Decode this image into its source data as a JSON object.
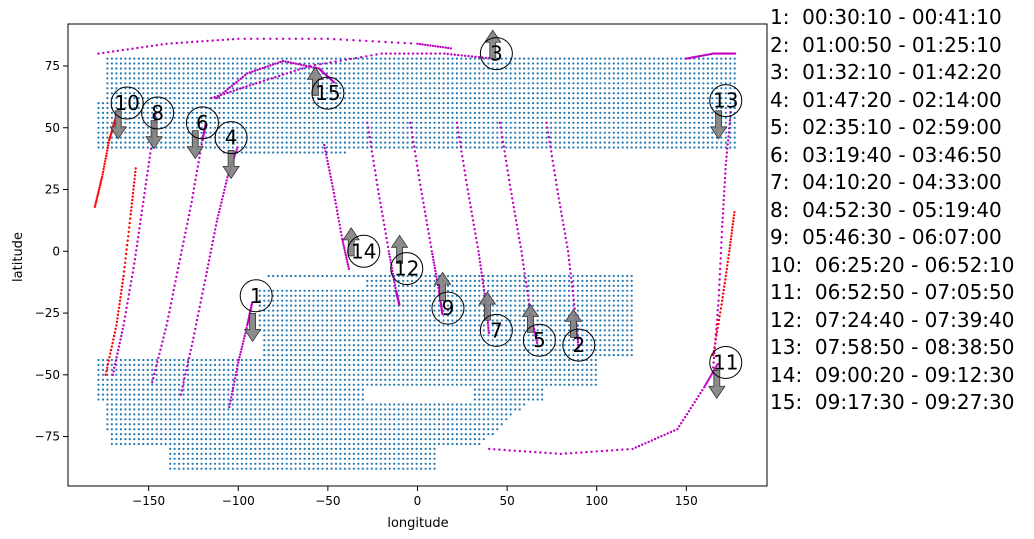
{
  "chart_data": {
    "type": "scatter",
    "xlabel": "longitude",
    "ylabel": "latitude",
    "xlim": [
      -195,
      195
    ],
    "ylim": [
      -95,
      92
    ],
    "xticks": [
      -150,
      -100,
      -50,
      0,
      50,
      100,
      150
    ],
    "yticks": [
      -75,
      -50,
      -25,
      0,
      25,
      50,
      75
    ],
    "grid": false,
    "colors": {
      "coverage": "#1f77b4",
      "track": "#c000c0",
      "track_highlight": "#ff0000",
      "arrow": "#808080"
    },
    "coverage_region": "dotted grid of points in blue",
    "passes": [
      {
        "id": "1",
        "time": "00:30:10 - 00:41:10",
        "color": "#c000c0",
        "path": [
          [
            -105,
            -63
          ],
          [
            -100,
            -45
          ],
          [
            -95,
            -30
          ],
          [
            -92,
            -20
          ]
        ],
        "label_xy": [
          -90,
          -18
        ],
        "arrow": "down",
        "arrow_xy": [
          -92,
          -30
        ]
      },
      {
        "id": "2",
        "time": "01:00:50 - 01:25:10",
        "color": "#c000c0",
        "path": [
          [
            72,
            52
          ],
          [
            78,
            25
          ],
          [
            84,
            0
          ],
          [
            88,
            -25
          ],
          [
            90,
            -40
          ]
        ],
        "label_xy": [
          90,
          -38
        ],
        "arrow": "up",
        "arrow_xy": [
          87,
          -30
        ]
      },
      {
        "id": "3",
        "time": "01:32:10 - 01:42:20",
        "color": "#c000c0",
        "path": [
          [
            -115,
            62
          ],
          [
            -90,
            68
          ],
          [
            -60,
            75
          ],
          [
            -20,
            80
          ],
          [
            15,
            80
          ],
          [
            42,
            78
          ]
        ],
        "label_xy": [
          44,
          80
        ],
        "arrow": "up",
        "arrow_xy": [
          42,
          83
        ]
      },
      {
        "id": "4",
        "time": "01:47:20 - 02:14:00",
        "color": "#c000c0",
        "path": [
          [
            -132,
            -58
          ],
          [
            -125,
            -35
          ],
          [
            -118,
            -10
          ],
          [
            -112,
            12
          ],
          [
            -106,
            30
          ],
          [
            -100,
            43
          ]
        ],
        "label_xy": [
          -104,
          46
        ],
        "arrow": "down",
        "arrow_xy": [
          -104,
          36
        ]
      },
      {
        "id": "5",
        "time": "02:35:10 - 02:59:00",
        "color": "#c000c0",
        "path": [
          [
            46,
            52
          ],
          [
            52,
            25
          ],
          [
            58,
            0
          ],
          [
            63,
            -25
          ],
          [
            67,
            -38
          ]
        ],
        "label_xy": [
          68,
          -36
        ],
        "arrow": "up",
        "arrow_xy": [
          63,
          -28
        ]
      },
      {
        "id": "6",
        "time": "03:19:40 - 03:46:50",
        "color": "#c000c0",
        "path": [
          [
            -148,
            -53
          ],
          [
            -140,
            -30
          ],
          [
            -133,
            -5
          ],
          [
            -126,
            20
          ],
          [
            -120,
            45
          ],
          [
            -118,
            52
          ]
        ],
        "label_xy": [
          -120,
          52
        ],
        "arrow": "down",
        "arrow_xy": [
          -124,
          44
        ]
      },
      {
        "id": "7",
        "time": "04:10:20 - 04:33:00",
        "color": "#c000c0",
        "path": [
          [
            22,
            52
          ],
          [
            28,
            25
          ],
          [
            34,
            0
          ],
          [
            38,
            -20
          ],
          [
            40,
            -34
          ]
        ],
        "label_xy": [
          44,
          -32
        ],
        "arrow": "up",
        "arrow_xy": [
          39,
          -23
        ]
      },
      {
        "id": "8",
        "time": "04:52:30 - 05:19:40",
        "color": "#c000c0",
        "path": [
          [
            -170,
            -50
          ],
          [
            -164,
            -30
          ],
          [
            -158,
            -5
          ],
          [
            -153,
            20
          ],
          [
            -148,
            45
          ],
          [
            -146,
            57
          ]
        ],
        "label_xy": [
          -145,
          56
        ],
        "arrow": "down",
        "arrow_xy": [
          -147,
          48
        ]
      },
      {
        "id": "9",
        "time": "05:46:30 - 06:07:00",
        "color": "#c000c0",
        "path": [
          [
            -4,
            52
          ],
          [
            2,
            25
          ],
          [
            8,
            0
          ],
          [
            12,
            -16
          ],
          [
            14,
            -26
          ]
        ],
        "label_xy": [
          17,
          -23
        ],
        "arrow": "up",
        "arrow_xy": [
          14,
          -15
        ]
      },
      {
        "id": "10",
        "time": "06:25:20 - 06:52:10",
        "color": "#ff0000",
        "path": [
          [
            -180,
            18
          ],
          [
            -176,
            30
          ],
          [
            -172,
            45
          ],
          [
            -168,
            55
          ]
        ],
        "label_xy": [
          -162,
          60
        ],
        "arrow": "down",
        "arrow_xy": [
          -167,
          52
        ]
      },
      {
        "id": "11",
        "time": "06:52:50 - 07:05:50",
        "color": "#c000c0",
        "path": [
          [
            40,
            -80
          ],
          [
            80,
            -82
          ],
          [
            120,
            -80
          ],
          [
            145,
            -72
          ],
          [
            160,
            -55
          ],
          [
            168,
            -45
          ]
        ],
        "label_xy": [
          172,
          -45
        ],
        "arrow": "down",
        "arrow_xy": [
          167,
          -53
        ]
      },
      {
        "id": "12",
        "time": "07:24:40 - 07:39:40",
        "color": "#c000c0",
        "path": [
          [
            -28,
            52
          ],
          [
            -22,
            25
          ],
          [
            -16,
            0
          ],
          [
            -12,
            -16
          ],
          [
            -10,
            -22
          ]
        ],
        "label_xy": [
          -6,
          -7
        ],
        "arrow": "up",
        "arrow_xy": [
          -10,
          0
        ]
      },
      {
        "id": "13",
        "time": "07:58:50 - 08:38:50",
        "color": "#c000c0",
        "path": [
          [
            165,
            -47
          ],
          [
            168,
            -20
          ],
          [
            170,
            10
          ],
          [
            172,
            35
          ],
          [
            175,
            58
          ]
        ],
        "label_xy": [
          172,
          61
        ],
        "arrow": "down",
        "arrow_xy": [
          168,
          52
        ]
      },
      {
        "id": "14",
        "time": "09:00:20 - 09:12:30",
        "color": "#c000c0",
        "path": [
          [
            -52,
            43
          ],
          [
            -47,
            25
          ],
          [
            -42,
            5
          ],
          [
            -38,
            -8
          ]
        ],
        "label_xy": [
          -30,
          0
        ],
        "arrow": "up",
        "arrow_xy": [
          -37,
          3
        ]
      },
      {
        "id": "15",
        "time": "09:17:30 - 09:27:30",
        "color": "#c000c0",
        "path": [
          [
            -112,
            62
          ],
          [
            -95,
            72
          ],
          [
            -75,
            77
          ],
          [
            -55,
            74
          ],
          [
            -46,
            68
          ]
        ],
        "label_xy": [
          -50,
          64
        ],
        "arrow": "up",
        "arrow_xy": [
          -57,
          68
        ]
      }
    ],
    "extra_segments": [
      {
        "color": "#ff0000",
        "path": [
          [
            -174,
            -50
          ],
          [
            -168,
            -30
          ],
          [
            -164,
            -10
          ],
          [
            -160,
            15
          ],
          [
            -157,
            35
          ]
        ]
      },
      {
        "color": "#c000c0",
        "path": [
          [
            -178,
            80
          ],
          [
            -140,
            84
          ],
          [
            -100,
            86
          ],
          [
            -50,
            86
          ],
          [
            0,
            84
          ],
          [
            20,
            82
          ]
        ]
      },
      {
        "color": "#ff0000",
        "path": [
          [
            165,
            -42
          ],
          [
            170,
            -20
          ],
          [
            174,
            0
          ],
          [
            177,
            17
          ]
        ]
      },
      {
        "color": "#c000c0",
        "path": [
          [
            150,
            78
          ],
          [
            165,
            80
          ],
          [
            178,
            80
          ]
        ]
      }
    ]
  }
}
